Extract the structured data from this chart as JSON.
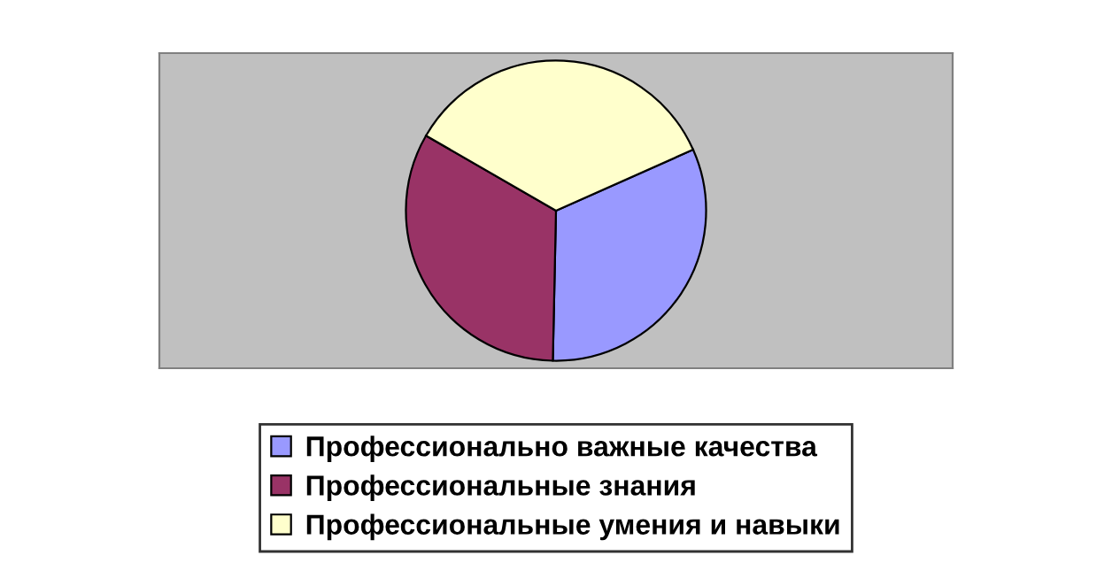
{
  "chart_data": {
    "type": "pie",
    "categories": [
      "Профессионально важные качества",
      "Профессиональные знания",
      "Профессиональные умения и навыки"
    ],
    "values": [
      32,
      33,
      35
    ],
    "colors": [
      "#9999ff",
      "#993366",
      "#ffffcc"
    ],
    "legend": "bottom"
  }
}
